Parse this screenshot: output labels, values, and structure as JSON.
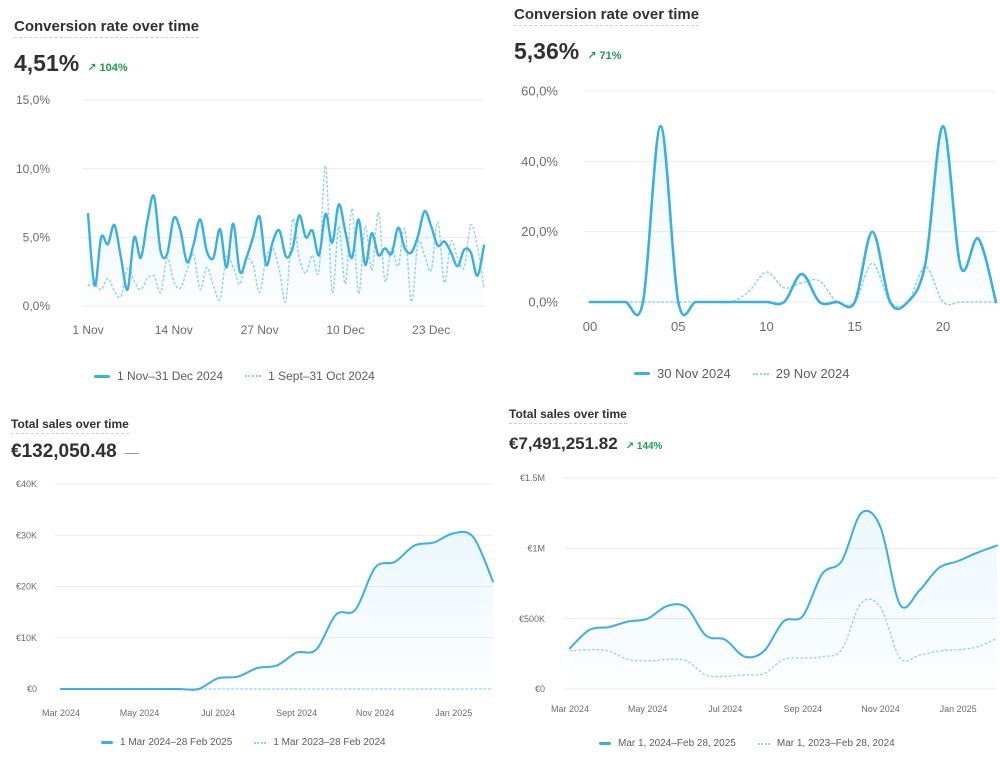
{
  "colors": {
    "primary": "#3ab0e2",
    "comparison": "#8fd0ef",
    "trend_up": "#1d9a52",
    "grid": "#ececec",
    "text": "#303030"
  },
  "cards": [
    {
      "title": "Conversion rate over time",
      "value": "4,51%",
      "trend": "↗ 104%",
      "neutral": ""
    },
    {
      "title": "Conversion rate over time",
      "value": "5,36%",
      "trend": "↗ 71%",
      "neutral": ""
    },
    {
      "title": "Total sales over time",
      "value": "€132,050.48",
      "trend": "",
      "neutral": "—"
    },
    {
      "title": "Total sales over time",
      "value": "€7,491,251.82",
      "trend": "↗ 144%",
      "neutral": ""
    }
  ],
  "chart_data": [
    {
      "type": "line",
      "title": "Conversion rate over time",
      "ylim": [
        0,
        15
      ],
      "y_ticks": [
        0,
        5,
        10,
        15
      ],
      "y_tick_labels": [
        "0,0%",
        "5,0%",
        "10,0%",
        "15,0%"
      ],
      "x_range": [
        0,
        60
      ],
      "x_ticks": [
        0,
        13,
        26,
        39,
        52
      ],
      "x_tick_labels": [
        "1 Nov",
        "14 Nov",
        "27 Nov",
        "10 Dec",
        "23 Dec"
      ],
      "series": [
        {
          "name": "1 Nov–31 Dec 2024",
          "style": "solid",
          "values": [
            6.7,
            1.5,
            5,
            4.5,
            5.9,
            3.5,
            1.2,
            5,
            3.5,
            6.2,
            8.0,
            4.0,
            3.8,
            6.4,
            5.5,
            3.2,
            4.5,
            6.3,
            4.0,
            3.5,
            5.6,
            2.8,
            6.0,
            2.5,
            3.5,
            5.0,
            6.5,
            3.0,
            4.7,
            5.5,
            3.6,
            4.2,
            6.6,
            5.0,
            5.5,
            3.7,
            6.7,
            4.6,
            7.4,
            5.4,
            3.5,
            6.3,
            3.0,
            5.3,
            3.7,
            4.2,
            3.8,
            5.7,
            4.2,
            3.9,
            5.1,
            6.9,
            5.8,
            4.4,
            4.7,
            3.9,
            2.9,
            4.1,
            3.9,
            2.2,
            4.4
          ]
        },
        {
          "name": "1 Sept–31 Oct 2024",
          "style": "dotted",
          "values": [
            1.5,
            1.6,
            1.2,
            2.0,
            1.1,
            0.7,
            2.8,
            1.8,
            1.2,
            2.0,
            2.2,
            1.0,
            3.5,
            1.8,
            1.3,
            2.6,
            3.7,
            1.2,
            2.8,
            1.5,
            0.5,
            3.6,
            2.8,
            1.6,
            3.4,
            3.0,
            1.0,
            3.5,
            4.2,
            2.6,
            0.4,
            6.3,
            3.5,
            2.4,
            3.7,
            2.6,
            10.2,
            1.0,
            5.8,
            1.6,
            7.1,
            0.9,
            5.8,
            2.6,
            6.8,
            1.8,
            4.2,
            2.9,
            5.6,
            0.3,
            4.6,
            3.7,
            2.6,
            6.1,
            1.7,
            4.7,
            3.5,
            2.8,
            5.9,
            4.3,
            1.3
          ]
        }
      ]
    },
    {
      "type": "line",
      "title": "Conversion rate over time",
      "ylim": [
        0,
        60
      ],
      "y_ticks": [
        0,
        20,
        40,
        60
      ],
      "y_tick_labels": [
        "0,0%",
        "20,0%",
        "40,0%",
        "60,0%"
      ],
      "x_range": [
        0,
        23
      ],
      "x_ticks": [
        0,
        5,
        10,
        15,
        20
      ],
      "x_tick_labels": [
        "00",
        "05",
        "10",
        "15",
        "20"
      ],
      "series": [
        {
          "name": "30 Nov 2024",
          "style": "solid",
          "values": [
            0,
            0,
            0,
            0,
            50,
            0,
            0,
            0,
            0,
            0,
            0,
            0,
            8,
            0,
            0,
            0,
            20,
            0,
            0,
            11,
            50,
            10,
            18,
            0
          ]
        },
        {
          "name": "29 Nov 2024",
          "style": "dotted",
          "values": [
            0,
            0,
            0,
            0,
            0,
            0,
            0,
            0,
            0,
            3,
            8.5,
            4,
            5.5,
            6,
            0,
            0,
            11,
            0,
            0,
            10,
            0,
            0,
            0,
            0
          ]
        }
      ]
    },
    {
      "type": "area",
      "title": "Total sales over time",
      "ylim": [
        0,
        40000
      ],
      "y_ticks": [
        0,
        10000,
        20000,
        30000,
        40000
      ],
      "y_tick_labels": [
        "€0",
        "€10K",
        "€20K",
        "€30K",
        "€40K"
      ],
      "x_range": [
        0,
        11
      ],
      "x_ticks": [
        0,
        2,
        4,
        6,
        8,
        10
      ],
      "x_tick_labels": [
        "Mar 2024",
        "May 2024",
        "Jul 2024",
        "Sept 2024",
        "Nov 2024",
        "Jan 2025"
      ],
      "series": [
        {
          "name": "1 Mar 2024–28 Feb 2025",
          "style": "solid",
          "x": [
            0,
            0.5,
            1,
            1.5,
            2,
            2.5,
            3,
            3.5,
            4,
            4.5,
            5,
            5.5,
            6,
            6.5,
            7,
            7.5,
            8,
            8.5,
            9,
            9.5,
            10,
            10.5,
            11
          ],
          "values": [
            0,
            0,
            0,
            0,
            0,
            0,
            0,
            0,
            2100,
            2400,
            4100,
            4600,
            7100,
            7700,
            14500,
            15500,
            23700,
            24800,
            28000,
            28600,
            30400,
            29600,
            21000
          ]
        },
        {
          "name": "1 Mar 2023–28 Feb 2024",
          "style": "dotted",
          "x": [
            0,
            11
          ],
          "values": [
            0,
            0
          ]
        }
      ]
    },
    {
      "type": "area",
      "title": "Total sales over time",
      "ylim": [
        0,
        1500000
      ],
      "y_ticks": [
        0,
        500000,
        1000000,
        1500000
      ],
      "y_tick_labels": [
        "€0",
        "€500K",
        "€1M",
        "€1.5M"
      ],
      "x_range": [
        0,
        11
      ],
      "x_ticks": [
        0,
        2,
        4,
        6,
        8,
        10
      ],
      "x_tick_labels": [
        "Mar 2024",
        "May 2024",
        "Jul 2024",
        "Sep 2024",
        "Nov 2024",
        "Jan 2025"
      ],
      "series": [
        {
          "name": "Mar 1, 2024–Feb 28, 2025",
          "style": "solid",
          "x": [
            0,
            0.5,
            1,
            1.5,
            2,
            2.5,
            3,
            3.5,
            4,
            4.5,
            5,
            5.5,
            6,
            6.5,
            7,
            7.5,
            8,
            8.5,
            9,
            9.5,
            10,
            10.5,
            11
          ],
          "values": [
            290000,
            420000,
            440000,
            480000,
            500000,
            590000,
            580000,
            380000,
            350000,
            230000,
            270000,
            480000,
            520000,
            820000,
            910000,
            1250000,
            1150000,
            600000,
            700000,
            860000,
            910000,
            970000,
            1020000
          ]
        },
        {
          "name": "Mar 1, 2023–Feb 28, 2024",
          "style": "dotted",
          "x": [
            0,
            0.5,
            1,
            1.5,
            2,
            2.5,
            3,
            3.5,
            4,
            4.5,
            5,
            5.5,
            6,
            6.5,
            7,
            7.5,
            8,
            8.5,
            9,
            9.5,
            10,
            10.5,
            11
          ],
          "values": [
            270000,
            280000,
            270000,
            210000,
            200000,
            210000,
            200000,
            100000,
            90000,
            100000,
            110000,
            210000,
            220000,
            230000,
            280000,
            610000,
            580000,
            220000,
            240000,
            270000,
            280000,
            300000,
            360000
          ]
        }
      ]
    }
  ]
}
